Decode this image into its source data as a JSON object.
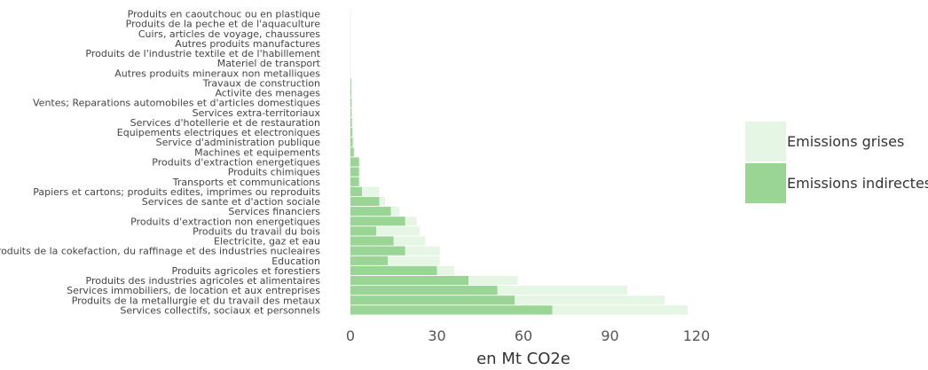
{
  "chart_data": {
    "type": "bar",
    "orientation": "horizontal",
    "stacked": true,
    "categories": [
      "Produits en caoutchouc ou en plastique",
      "Produits de la peche et de l'aquaculture",
      "Cuirs, articles de voyage, chaussures",
      "Autres produits manufactures",
      "Produits de l'industrie textile et de l'habillement",
      "Materiel de transport",
      "Autres produits mineraux non metalliques",
      "Travaux de construction",
      "Activite des menages",
      "Ventes; Reparations automobiles et d'articles domestiques",
      "Services extra-territoriaux",
      "Services d'hotellerie et de restauration",
      "Equipements electriques et electroniques",
      "Service d'administration publique",
      "Machines et equipements",
      "Produits d'extraction energetiques",
      "Produits chimiques",
      "Transports et communications",
      "Papiers et cartons; produits edites, imprimes ou reproduits",
      "Services de sante et d'action sociale",
      "Services financiers",
      "Produits d'extraction non energetiques",
      "Produits du travail du bois",
      "Electricite, gaz et eau",
      "Produits de la cokefaction, du raffinage et des industries nucleaires",
      "Education",
      "Produits agricoles et forestiers",
      "Produits des industries agricoles et alimentaires",
      "Services immobiliers, de location et aux entreprises",
      "Produits de la metallurgie et du travail des metaux",
      "Services collectifs, sociaux et personnels"
    ],
    "series": [
      {
        "name": "Emissions indirectes",
        "color": "#9ad595",
        "values": [
          0,
          0,
          0,
          0,
          0,
          0,
          0,
          0.3,
          0.3,
          0.4,
          0.4,
          0.5,
          0.6,
          0.8,
          1.2,
          3,
          3,
          3,
          4,
          10,
          14,
          19,
          9,
          15,
          19,
          13,
          30,
          41,
          51,
          57,
          70
        ]
      },
      {
        "name": "Emissions grises",
        "color": "#e6f6e4",
        "values": [
          0,
          0,
          0,
          0,
          0,
          0,
          0,
          0.2,
          0.2,
          0.3,
          0.2,
          0.3,
          0.4,
          0.4,
          0.3,
          0.3,
          0.3,
          0.3,
          6,
          2,
          3,
          4,
          15,
          11,
          12,
          18,
          6,
          17,
          45,
          52,
          47
        ]
      }
    ],
    "x_ticks": [
      "0",
      "30",
      "60",
      "90",
      "120"
    ],
    "xlim": [
      0,
      120
    ],
    "xlabel": "en Mt CO2e",
    "ylabel": "",
    "title": "",
    "grid": false,
    "legend_position": "right"
  }
}
